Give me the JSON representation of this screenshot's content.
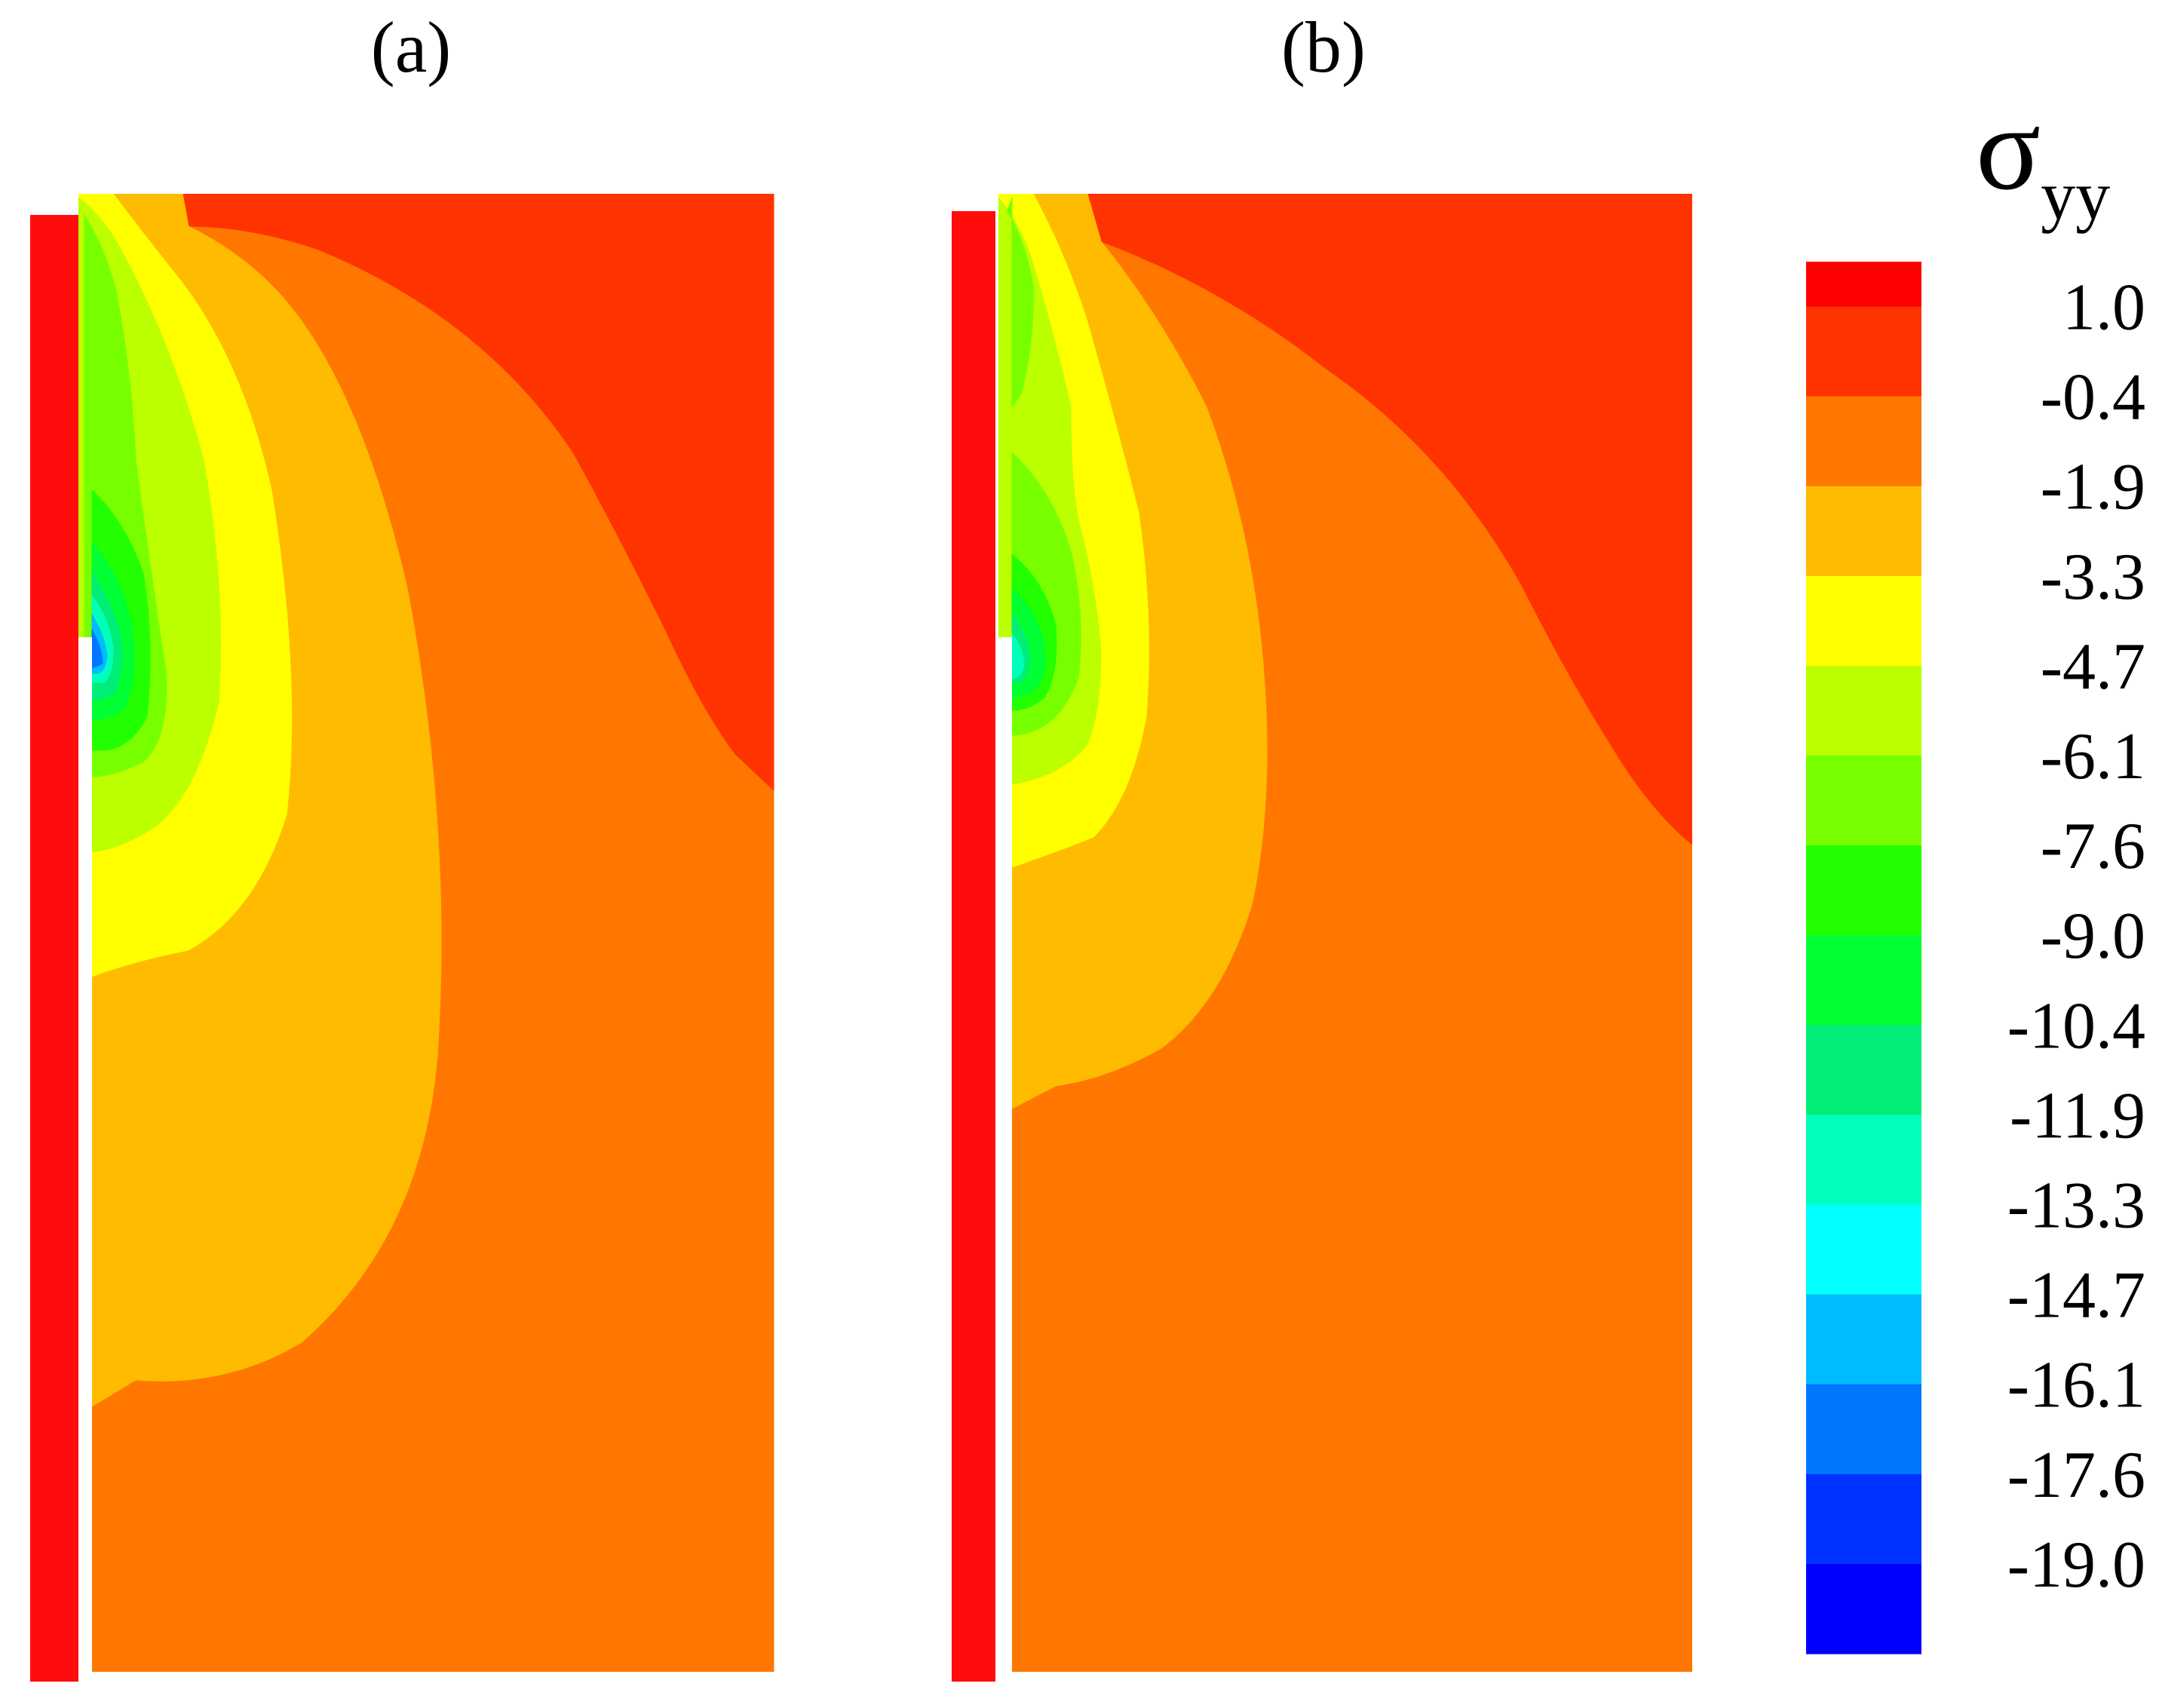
{
  "chart_data": {
    "type": "heatmap",
    "panels": [
      {
        "label": "(a)"
      },
      {
        "label": "(b)"
      }
    ],
    "colorbar": {
      "symbol": "σ",
      "subscript": "yy",
      "tick_labels": [
        "1.0",
        "-0.4",
        "-1.9",
        "-3.3",
        "-4.7",
        "-6.1",
        "-7.6",
        "-9.0",
        "-10.4",
        "-11.9",
        "-13.3",
        "-14.7",
        "-16.1",
        "-17.6",
        "-19.0"
      ],
      "levels": [
        1.0,
        -0.4,
        -1.9,
        -3.3,
        -4.7,
        -6.1,
        -7.6,
        -9.0,
        -10.4,
        -11.9,
        -13.3,
        -14.7,
        -16.1,
        -17.6,
        -19.0
      ],
      "colors": [
        "#ff0000",
        "#ff3300",
        "#ff7700",
        "#ffbb00",
        "#ffff00",
        "#bbff00",
        "#77ff00",
        "#22ff00",
        "#00ff33",
        "#00ee77",
        "#00ffbb",
        "#00ffff",
        "#00bbff",
        "#0077ff",
        "#0033ff",
        "#0000ff"
      ]
    },
    "pile_color": "#ff0d0d"
  }
}
